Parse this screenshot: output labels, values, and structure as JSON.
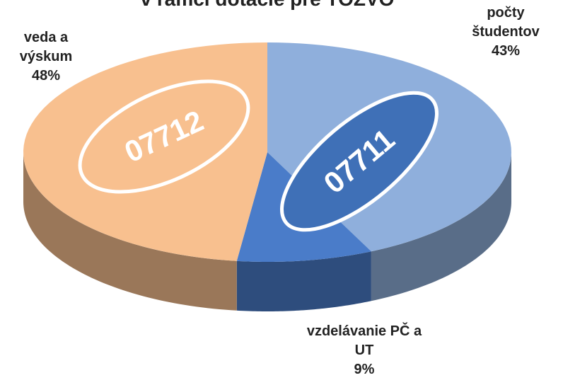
{
  "chart_data": {
    "type": "pie3d",
    "title": "v rámci dotácie pre TOZVO",
    "categories": [
      "počty študentov",
      "vzdelávanie PČ a UT",
      "veda a výskum"
    ],
    "values": [
      43,
      9,
      48
    ],
    "value_labels": [
      "43%",
      "9%",
      "48%"
    ],
    "colors": [
      "#8fafdc",
      "#4a7cc9",
      "#f8c08f"
    ],
    "annotations": [
      "07711",
      "07712"
    ]
  }
}
